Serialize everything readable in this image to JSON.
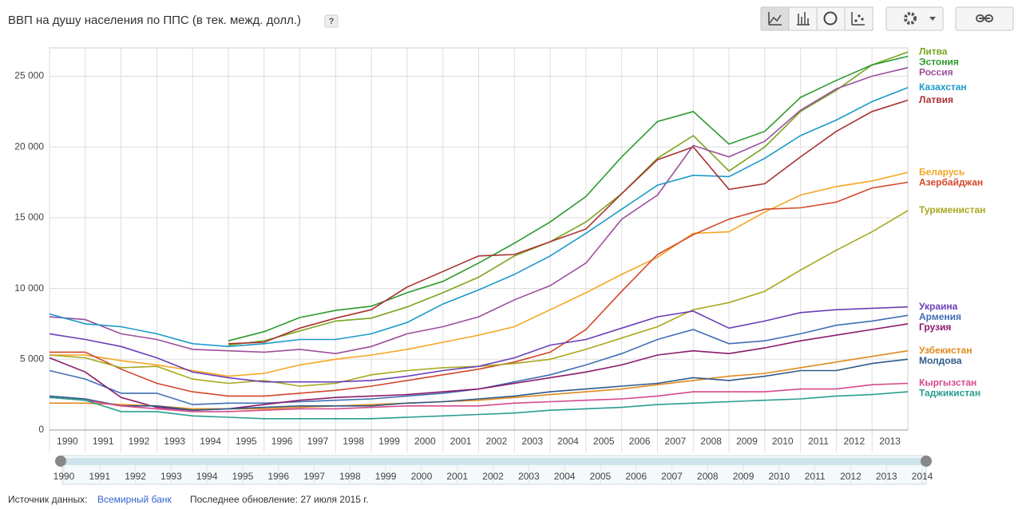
{
  "chart_data": {
    "type": "line",
    "title": "ВВП на душу населения по ППС (в тек. межд. долл.)",
    "help": "?",
    "x": [
      1990,
      1991,
      1992,
      1993,
      1994,
      1995,
      1996,
      1997,
      1998,
      1999,
      2000,
      2001,
      2002,
      2003,
      2004,
      2005,
      2006,
      2007,
      2008,
      2009,
      2010,
      2011,
      2012,
      2013,
      2014
    ],
    "xlim": [
      1990,
      2014
    ],
    "xticks": [
      1990,
      1991,
      1992,
      1993,
      1994,
      1995,
      1996,
      1997,
      1998,
      1999,
      2000,
      2001,
      2002,
      2003,
      2004,
      2005,
      2006,
      2007,
      2008,
      2009,
      2010,
      2011,
      2012,
      2013
    ],
    "ylim": [
      0,
      27000
    ],
    "yticks": [
      0,
      {
        "value": 5000,
        "label": "5 000"
      },
      {
        "value": 10000,
        "label": "10 000"
      },
      {
        "value": 15000,
        "label": "15 000"
      },
      {
        "value": 20000,
        "label": "20 000"
      },
      {
        "value": 25000,
        "label": "25 000"
      }
    ],
    "grid": true,
    "legend": "right",
    "series": [
      {
        "name": "Литва",
        "color": "#7aa51f",
        "values": [
          null,
          null,
          null,
          null,
          null,
          6000,
          6300,
          7000,
          7700,
          7900,
          8700,
          9700,
          10800,
          12300,
          13300,
          14700,
          16700,
          19200,
          20800,
          18300,
          20000,
          22500,
          24000,
          25800,
          26700
        ]
      },
      {
        "name": "Эстония",
        "color": "#2e9a2e",
        "values": [
          null,
          null,
          null,
          null,
          null,
          6300,
          6950,
          7950,
          8450,
          8750,
          9700,
          10500,
          11800,
          13200,
          14700,
          16500,
          19300,
          21800,
          22500,
          20200,
          21100,
          23500,
          24700,
          25800,
          26400
        ]
      },
      {
        "name": "Россия",
        "color": "#9c4f9c",
        "values": [
          8000,
          7800,
          6800,
          6400,
          5700,
          5600,
          5500,
          5700,
          5400,
          5900,
          6800,
          7300,
          8000,
          9200,
          10200,
          11800,
          14900,
          16600,
          20100,
          19300,
          20400,
          22600,
          24100,
          25000,
          25600
        ]
      },
      {
        "name": "Казахстан",
        "color": "#1a9ac9",
        "values": [
          8200,
          7500,
          7300,
          6800,
          6100,
          5900,
          6100,
          6400,
          6400,
          6800,
          7600,
          8900,
          9900,
          11000,
          12300,
          13900,
          15600,
          17300,
          18000,
          17900,
          19200,
          20800,
          21900,
          23200,
          24200
        ]
      },
      {
        "name": "Латвия",
        "color": "#a83232",
        "values": [
          null,
          null,
          null,
          null,
          null,
          6100,
          6200,
          7200,
          7900,
          8500,
          10100,
          11200,
          12300,
          12400,
          13300,
          14200,
          16700,
          19100,
          20000,
          17000,
          17400,
          19300,
          21100,
          22500,
          23300
        ]
      },
      {
        "name": "Беларусь",
        "color": "#f5a623",
        "values": [
          5300,
          5300,
          4900,
          4600,
          4200,
          3800,
          4000,
          4600,
          5000,
          5300,
          5700,
          6200,
          6700,
          7300,
          8500,
          9700,
          11000,
          12200,
          13900,
          14000,
          15400,
          16600,
          17200,
          17600,
          18200
        ]
      },
      {
        "name": "Азербайджан",
        "color": "#d2462a",
        "values": [
          5500,
          5500,
          4300,
          3300,
          2700,
          2400,
          2400,
          2600,
          2800,
          3100,
          3500,
          3900,
          4300,
          4800,
          5500,
          7100,
          9800,
          12400,
          13800,
          14900,
          15600,
          15700,
          16100,
          17100,
          17500
        ]
      },
      {
        "name": "Туркменистан",
        "color": "#a8a820",
        "values": [
          5300,
          5100,
          4400,
          4500,
          3600,
          3300,
          3500,
          3100,
          3300,
          3900,
          4200,
          4400,
          4500,
          4700,
          5000,
          5700,
          6500,
          7300,
          8500,
          9000,
          9800,
          11300,
          12700,
          14000,
          15500
        ]
      },
      {
        "name": "Украина",
        "color": "#6a3fb5",
        "values": [
          6800,
          6400,
          5900,
          5100,
          4100,
          3700,
          3400,
          3400,
          3400,
          3500,
          3800,
          4200,
          4500,
          5100,
          6000,
          6400,
          7200,
          8000,
          8400,
          7200,
          7700,
          8300,
          8500,
          8600,
          8700
        ]
      },
      {
        "name": "Армения",
        "color": "#3f6fb5",
        "values": [
          4200,
          3600,
          2600,
          2600,
          1800,
          1900,
          1900,
          2000,
          2100,
          2200,
          2400,
          2600,
          2900,
          3400,
          3900,
          4600,
          5400,
          6400,
          7100,
          6100,
          6300,
          6800,
          7400,
          7700,
          8100
        ]
      },
      {
        "name": "Грузия",
        "color": "#8b1a6b",
        "values": [
          5100,
          4100,
          2300,
          1600,
          1400,
          1500,
          1800,
          2100,
          2300,
          2400,
          2500,
          2700,
          2900,
          3300,
          3700,
          4100,
          4600,
          5300,
          5600,
          5400,
          5800,
          6300,
          6700,
          7100,
          7500
        ]
      },
      {
        "name": "Узбекистан",
        "color": "#e08a1e",
        "values": [
          1900,
          1900,
          1800,
          1700,
          1500,
          1500,
          1500,
          1600,
          1700,
          1800,
          1900,
          2000,
          2100,
          2300,
          2500,
          2700,
          2900,
          3200,
          3500,
          3800,
          4000,
          4400,
          4800,
          5200,
          5600
        ]
      },
      {
        "name": "Молдова",
        "color": "#2f5a8a",
        "values": [
          2400,
          2200,
          1700,
          1700,
          1400,
          1500,
          1600,
          1700,
          1700,
          1700,
          1900,
          2000,
          2200,
          2400,
          2700,
          2900,
          3100,
          3300,
          3700,
          3500,
          3800,
          4200,
          4200,
          4700,
          5000
        ]
      },
      {
        "name": "Кыргызстан",
        "color": "#d6498a",
        "values": [
          2300,
          2100,
          1700,
          1500,
          1300,
          1300,
          1400,
          1500,
          1500,
          1600,
          1700,
          1700,
          1700,
          1900,
          2000,
          2100,
          2200,
          2400,
          2700,
          2700,
          2700,
          2900,
          2900,
          3200,
          3300
        ]
      },
      {
        "name": "Таджикистан",
        "color": "#2a9d8f",
        "values": [
          2300,
          2100,
          1300,
          1300,
          1000,
          900,
          800,
          800,
          800,
          800,
          900,
          1000,
          1100,
          1200,
          1400,
          1500,
          1600,
          1800,
          1900,
          2000,
          2100,
          2200,
          2400,
          2500,
          2700
        ]
      }
    ]
  },
  "range_slider": {
    "ticks": [
      1990,
      1991,
      1992,
      1993,
      1994,
      1995,
      1996,
      1997,
      1998,
      1999,
      2000,
      2001,
      2002,
      2003,
      2004,
      2005,
      2006,
      2007,
      2008,
      2009,
      2010,
      2011,
      2012,
      2013,
      2014
    ]
  },
  "footer": {
    "source_label": "Источник данных:",
    "source": "Всемирный банк",
    "updated": "Последнее обновление: 27 июля 2015 г."
  }
}
